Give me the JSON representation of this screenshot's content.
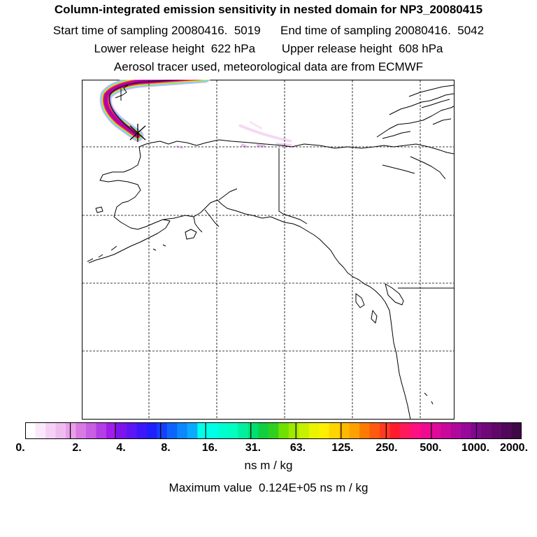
{
  "header": {
    "title": "Column-integrated emission sensitivity in nested domain for NP3_20080415",
    "line_sampling": "Start time of sampling 20080416.  5019      End time of sampling 20080416.  5042",
    "line_release": "Lower release height  622 hPa        Upper release height  608 hPa",
    "line_tracer": "Aerosol tracer used, meteorological data are from ECMWF"
  },
  "colorbar": {
    "tick_labels": [
      "0.",
      "2.",
      "4.",
      "8.",
      "16.",
      "31.",
      "63.",
      "125.",
      "250.",
      "500.",
      "1000.",
      "2000."
    ],
    "unit": "ns m / kg",
    "colors": [
      "#ffffff",
      "#fbe9fb",
      "#f5d2f5",
      "#efbcef",
      "#e89fe8",
      "#d97ae3",
      "#c85ee3",
      "#b43de6",
      "#a01ee8",
      "#7d14ee",
      "#5e16f5",
      "#3d18fa",
      "#2020fb",
      "#1340ff",
      "#0e64ff",
      "#0c88ff",
      "#0aaaff",
      "#00ffe8",
      "#00ffe8",
      "#00ffd0",
      "#00ffc0",
      "#00f0a0",
      "#00e070",
      "#10d040",
      "#30d020",
      "#70e000",
      "#a0e800",
      "#c8f000",
      "#e8f400",
      "#ffee00",
      "#ffd400",
      "#ffb800",
      "#ffa000",
      "#ff7a00",
      "#ff5a10",
      "#ff3a20",
      "#ff1a30",
      "#ff1a5a",
      "#ff1080",
      "#f00a90",
      "#e00a98",
      "#c8089c",
      "#b0089c",
      "#98089a",
      "#800890",
      "#700878",
      "#600868",
      "#500858",
      "#400848"
    ]
  },
  "footer": {
    "max_value": "Maximum value  0.124E+05 ns m / kg"
  }
}
